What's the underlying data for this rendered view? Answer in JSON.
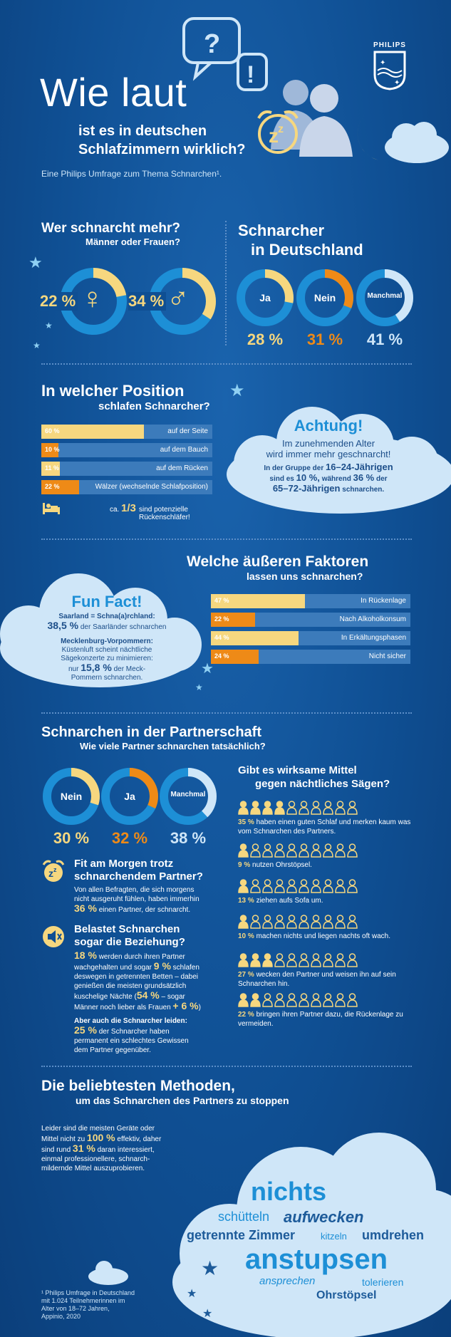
{
  "brand": {
    "name": "PHILIPS"
  },
  "header": {
    "title_big": "Wie laut",
    "title_line2": "ist es in deutschen",
    "title_line3": "Schlafzimmern wirklich?",
    "subtitle": "Eine Philips Umfrage zum Thema Schnarchen¹."
  },
  "gender": {
    "title": "Wer schnarcht mehr?",
    "subtitle": "Männer oder Frauen?",
    "women_pct": "22 %",
    "men_pct": "34 %",
    "women_value": 22,
    "men_value": 34,
    "women_icon": "female-symbol-icon",
    "men_icon": "male-symbol-icon"
  },
  "snorers": {
    "title_l1": "Schnarcher",
    "title_l2": "in Deutschland",
    "items": [
      {
        "label": "Ja",
        "pct": "28 %",
        "value": 28
      },
      {
        "label": "Nein",
        "pct": "31 %",
        "value": 31
      },
      {
        "label": "Manchmal",
        "pct": "41 %",
        "value": 41
      }
    ]
  },
  "position": {
    "title_l1": "In welcher Position",
    "title_l2": "schlafen Schnarcher?",
    "bars": [
      {
        "pct": "60 %",
        "label": "auf der Seite",
        "value": 60,
        "color": "#f6d77f"
      },
      {
        "pct": "10 %",
        "label": "auf dem Bauch",
        "value": 10,
        "color": "#ee8a17"
      },
      {
        "pct": "11 %",
        "label": "auf dem Rücken",
        "value": 11,
        "color": "#f6d77f"
      },
      {
        "pct": "22 %",
        "label": "Wälzer (wechselnde Schlafposition)",
        "value": 22,
        "color": "#ee8a17"
      }
    ],
    "note_pre": "ca.",
    "note_value": "1/3",
    "note_post": "sind potenzielle Rückenschläfer!",
    "note_icon": "bed-icon"
  },
  "achtung": {
    "title": "Achtung!",
    "line1": "Im zunehmenden Alter",
    "line2": "wird immer mehr geschnarcht!",
    "line3_pre": "In der Gruppe der",
    "line3_val": "16–24-Jährigen",
    "line4_pre": "sind es",
    "line4_val1": "10 %,",
    "line4_mid": "während",
    "line4_val2": "36 %",
    "line4_post": "der",
    "line5_val": "65–72-Jährigen",
    "line5_post": "schnarchen."
  },
  "funfact": {
    "title": "Fun Fact!",
    "saar_head": "Saarland = Schna(a)rchland:",
    "saar_val": "38,5 %",
    "saar_post": "der Saarländer schnarchen",
    "mv_head": "Mecklenburg-Vorpommern:",
    "mv_l1": "Küstenluft scheint nächtliche",
    "mv_l2": "Sägekonzerte zu minimieren:",
    "mv_pre": "nur",
    "mv_val": "15,8 %",
    "mv_post": "der Meck-",
    "mv_l4": "Pommern schnarchen."
  },
  "factors": {
    "title_l1": "Welche äußeren Faktoren",
    "title_l2": "lassen uns schnarchen?",
    "bars": [
      {
        "pct": "47 %",
        "label": "In Rückenlage",
        "value": 47,
        "color": "#f6d77f"
      },
      {
        "pct": "22 %",
        "label": "Nach Alkoholkonsum",
        "value": 22,
        "color": "#ee8a17"
      },
      {
        "pct": "44 %",
        "label": "In Erkältungsphasen",
        "value": 44,
        "color": "#f6d77f"
      },
      {
        "pct": "24 %",
        "label": "Nicht sicher",
        "value": 24,
        "color": "#ee8a17"
      }
    ]
  },
  "partner": {
    "title": "Schnarchen in der Partnerschaft",
    "subtitle": "Wie viele Partner schnarchen tatsächlich?",
    "items": [
      {
        "label": "Nein",
        "pct": "30 %",
        "value": 30
      },
      {
        "label": "Ja",
        "pct": "32 %",
        "value": 32
      },
      {
        "label": "Manchmal",
        "pct": "38 %",
        "value": 38
      }
    ],
    "fit_title_l1": "Fit am Morgen trotz",
    "fit_title_l2": "schnarchendem Partner?",
    "fit_l1": "Von allen Befragten, die sich morgens",
    "fit_l2": "nicht ausgeruht fühlen, haben immerhin",
    "fit_val": "36 %",
    "fit_post": "einen Partner, der schnarcht.",
    "fit_icon": "alarm-clock-icon",
    "bel_title_l1": "Belastet Schnarchen",
    "bel_title_l2": "sogar die Beziehung?",
    "bel_icon": "mute-speaker-icon",
    "bel_val1": "18 %",
    "bel_l1": "werden durch ihren Partner",
    "bel_l2_pre": "wachgehalten und sogar",
    "bel_val2": "9 %",
    "bel_l2_post": "schlafen",
    "bel_l3": "deswegen in getrennten Betten – dabei",
    "bel_l4": "genießen die meisten grundsätzlich",
    "bel_l5_pre": "kuschelige Nächte (",
    "bel_val3": "54 %",
    "bel_l5_post": "– sogar",
    "bel_l6_pre": "Männer noch lieber als Frauen",
    "bel_val4": "+ 6 %",
    ")": ")",
    "suffer_head": "Aber auch die Schnarcher leiden:",
    "suffer_val": "25 %",
    "suffer_l1": "der Schnarcher haben",
    "suffer_l2": "permanent ein schlechtes Gewissen",
    "suffer_l3": "dem Partner gegenüber."
  },
  "remedies": {
    "title_l1": "Gibt es wirksame Mittel",
    "title_l2": "gegen nächtliches Sägen?",
    "rows": [
      {
        "pct": "35 %",
        "text": "haben einen guten Schlaf und merken kaum was",
        "text2": "vom Schnarchen des Partners.",
        "value": 35
      },
      {
        "pct": "9 %",
        "text": "nutzen Ohrstöpsel.",
        "text2": "",
        "value": 9
      },
      {
        "pct": "13 %",
        "text": "ziehen aufs Sofa um.",
        "text2": "",
        "value": 13
      },
      {
        "pct": "10 %",
        "text": "machen nichts und liegen nachts oft wach.",
        "text2": "",
        "value": 10
      },
      {
        "pct": "27 %",
        "text": "wecken den Partner und weisen ihn auf sein",
        "text2": "Schnarchen hin.",
        "value": 27
      },
      {
        "pct": "22 %",
        "text": "bringen ihren Partner dazu, die Rückenlage zu",
        "text2": "vermeiden.",
        "value": 22
      }
    ]
  },
  "methods": {
    "title_l1": "Die beliebtesten Methoden,",
    "title_l2": "um das Schnarchen des Partners zu stoppen",
    "p_l1": "Leider sind die meisten Geräte oder",
    "p_l2_pre": "Mittel nicht zu",
    "p_val1": "100 %",
    "p_l2_post": "effektiv, daher",
    "p_l3_pre": "sind rund",
    "p_val2": "31 %",
    "p_l3_post": "daran interessiert,",
    "p_l4": "einmal professionellere, schnarch-",
    "p_l5": "mildernde Mittel auszuprobieren.",
    "words": {
      "w1": "nichts",
      "w2": "schütteln",
      "w3": "aufwecken",
      "w4": "getrennte Zimmer",
      "w5": "kitzeln",
      "w6": "umdrehen",
      "w7": "anstupsen",
      "w8": "ansprechen",
      "w9": "tolerieren",
      "w10": "Ohrstöpsel"
    }
  },
  "footnote": {
    "l1": "¹ Philips Umfrage in Deutschland",
    "l2": "mit 1.024 Teilnehmerinnen im",
    "l3": "Alter von 18–72 Jahren,",
    "l4": "Appinio, 2020"
  }
}
